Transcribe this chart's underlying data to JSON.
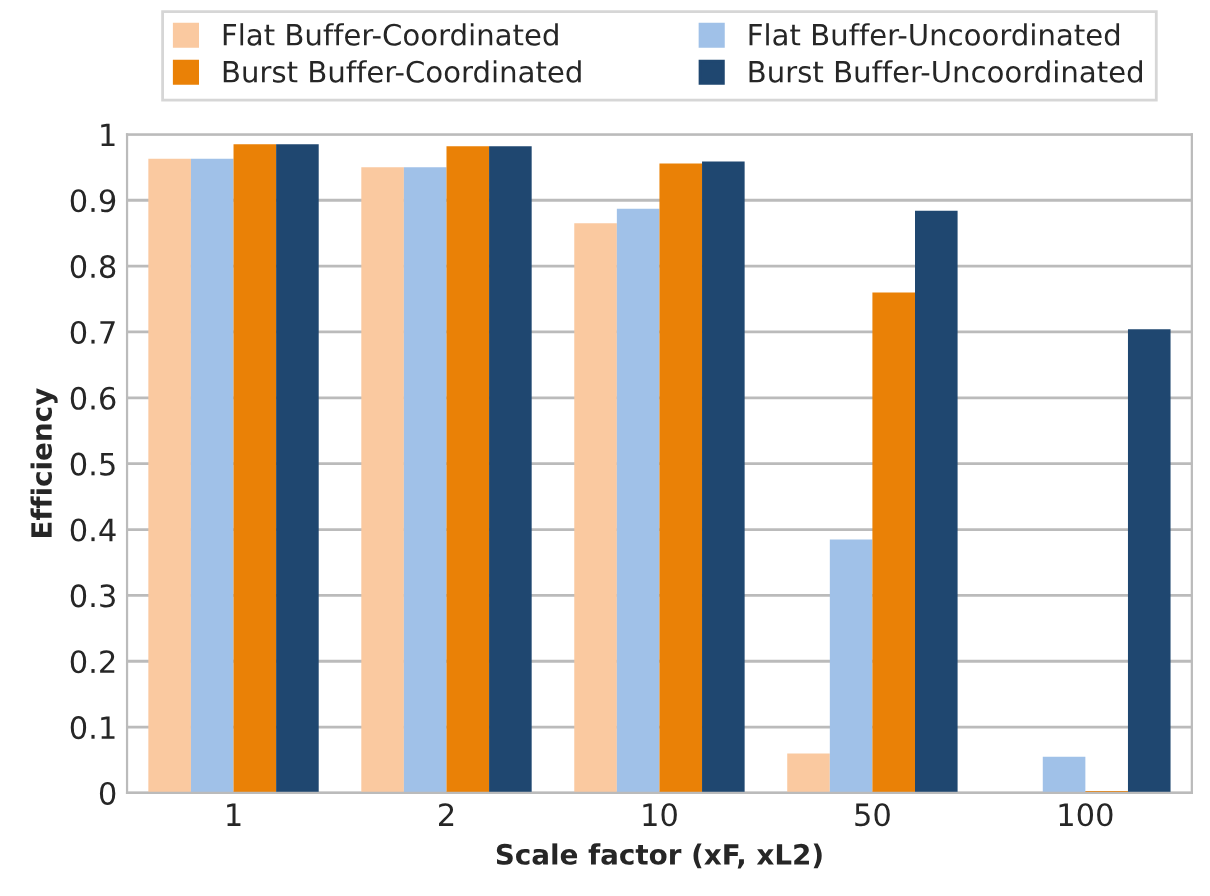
{
  "chart_data": {
    "type": "bar",
    "xlabel": "Scale factor (xF, xL2)",
    "ylabel": "Efficiency",
    "categories": [
      "1",
      "2",
      "10",
      "50",
      "100"
    ],
    "series": [
      {
        "name": "Flat Buffer-Coordinated",
        "color": "#fac9a0",
        "values": [
          0.963,
          0.95,
          0.865,
          0.06,
          null
        ]
      },
      {
        "name": "Flat Buffer-Uncoordinated",
        "color": "#a0c1e8",
        "values": [
          0.963,
          0.95,
          0.887,
          0.385,
          0.055
        ]
      },
      {
        "name": "Burst Buffer-Coordinated",
        "color": "#ea8106",
        "values": [
          0.985,
          0.982,
          0.956,
          0.76,
          0.003
        ]
      },
      {
        "name": "Burst Buffer-Uncoordinated",
        "color": "#1f4770",
        "values": [
          0.985,
          0.982,
          0.959,
          0.884,
          0.704
        ]
      }
    ],
    "ylim": [
      0,
      1
    ],
    "yticks": [
      0,
      0.1,
      0.2,
      0.3,
      0.4,
      0.5,
      0.6,
      0.7,
      0.8,
      0.9,
      1
    ],
    "grid": "y",
    "legend": "top"
  }
}
